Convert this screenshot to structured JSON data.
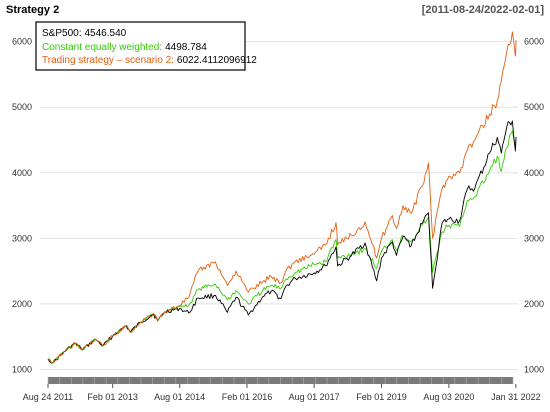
{
  "chart_data": {
    "type": "line",
    "title": "Strategy 2",
    "date_range": "[2011-08-24/2022-02-01]",
    "ylim": [
      900,
      6300
    ],
    "y_ticks": [
      1000,
      2000,
      3000,
      4000,
      5000,
      6000
    ],
    "y_tick_labels": [
      "1000",
      "2000",
      "3000",
      "4000",
      "5000",
      "6000"
    ],
    "x_ticks": [
      "2011-08-24",
      "2013-02-01",
      "2014-08-01",
      "2016-02-01",
      "2017-08-01",
      "2019-02-01",
      "2020-08-03",
      "2022-01-31"
    ],
    "x_tick_labels": [
      "Aug 24 2011",
      "Feb 01 2013",
      "Aug 01 2014",
      "Feb 01 2016",
      "Aug 01 2017",
      "Feb 01 2019",
      "Aug 03 2020",
      "Jan 31 2022"
    ],
    "x_range": [
      "2011-08-24",
      "2022-02-01"
    ],
    "grid": true,
    "legend_position": "top-left",
    "series": [
      {
        "name": "S&P500",
        "legend_label": "S&P500:",
        "last_value": "4546.540",
        "color": "#000000",
        "points": [
          [
            "2011-08-24",
            1160
          ],
          [
            "2011-10-03",
            1100
          ],
          [
            "2012-01-02",
            1270
          ],
          [
            "2012-04-02",
            1400
          ],
          [
            "2012-06-01",
            1300
          ],
          [
            "2012-09-14",
            1460
          ],
          [
            "2012-11-15",
            1360
          ],
          [
            "2013-02-01",
            1510
          ],
          [
            "2013-05-21",
            1670
          ],
          [
            "2013-06-24",
            1570
          ],
          [
            "2013-09-18",
            1720
          ],
          [
            "2013-12-31",
            1850
          ],
          [
            "2014-02-03",
            1740
          ],
          [
            "2014-04-01",
            1880
          ],
          [
            "2014-08-01",
            1930
          ],
          [
            "2014-10-15",
            1860
          ],
          [
            "2014-12-29",
            2090
          ],
          [
            "2015-05-20",
            2130
          ],
          [
            "2015-08-25",
            1870
          ],
          [
            "2015-11-03",
            2100
          ],
          [
            "2016-02-11",
            1830
          ],
          [
            "2016-06-08",
            2110
          ],
          [
            "2016-08-15",
            2190
          ],
          [
            "2016-11-04",
            2080
          ],
          [
            "2016-12-13",
            2270
          ],
          [
            "2017-03-01",
            2390
          ],
          [
            "2017-08-01",
            2475
          ],
          [
            "2017-11-01",
            2580
          ],
          [
            "2018-01-26",
            2870
          ],
          [
            "2018-02-08",
            2580
          ],
          [
            "2018-06-01",
            2740
          ],
          [
            "2018-09-20",
            2930
          ],
          [
            "2018-12-24",
            2350
          ],
          [
            "2019-02-01",
            2700
          ],
          [
            "2019-04-30",
            2945
          ],
          [
            "2019-06-03",
            2740
          ],
          [
            "2019-07-26",
            3025
          ],
          [
            "2019-10-02",
            2890
          ],
          [
            "2019-12-31",
            3230
          ],
          [
            "2020-02-19",
            3390
          ],
          [
            "2020-03-23",
            2240
          ],
          [
            "2020-06-08",
            3230
          ],
          [
            "2020-08-03",
            3295
          ],
          [
            "2020-10-30",
            3270
          ],
          [
            "2020-12-31",
            3750
          ],
          [
            "2021-03-04",
            3770
          ],
          [
            "2021-06-30",
            4300
          ],
          [
            "2021-09-02",
            4540
          ],
          [
            "2021-10-04",
            4300
          ],
          [
            "2021-11-18",
            4700
          ],
          [
            "2022-01-03",
            4790
          ],
          [
            "2022-01-27",
            4330
          ],
          [
            "2022-02-01",
            4546
          ]
        ]
      },
      {
        "name": "Constant equally weighted",
        "legend_label": "Constant equally weighted:",
        "last_value": "4498.784",
        "color": "#33cc00",
        "points": [
          [
            "2011-08-24",
            1160
          ],
          [
            "2011-10-03",
            1100
          ],
          [
            "2012-01-02",
            1270
          ],
          [
            "2012-04-02",
            1400
          ],
          [
            "2012-06-01",
            1300
          ],
          [
            "2012-09-14",
            1460
          ],
          [
            "2012-11-15",
            1360
          ],
          [
            "2013-02-01",
            1510
          ],
          [
            "2013-05-21",
            1670
          ],
          [
            "2013-06-24",
            1570
          ],
          [
            "2013-09-18",
            1720
          ],
          [
            "2013-12-31",
            1850
          ],
          [
            "2014-02-03",
            1740
          ],
          [
            "2014-04-01",
            1880
          ],
          [
            "2014-08-01",
            1960
          ],
          [
            "2014-10-15",
            1980
          ],
          [
            "2014-12-29",
            2220
          ],
          [
            "2015-05-20",
            2300
          ],
          [
            "2015-08-25",
            2060
          ],
          [
            "2015-11-03",
            2200
          ],
          [
            "2016-02-11",
            2000
          ],
          [
            "2016-06-08",
            2200
          ],
          [
            "2016-08-15",
            2280
          ],
          [
            "2016-11-04",
            2240
          ],
          [
            "2016-12-13",
            2380
          ],
          [
            "2017-03-01",
            2480
          ],
          [
            "2017-08-01",
            2600
          ],
          [
            "2017-11-01",
            2640
          ],
          [
            "2018-01-26",
            2980
          ],
          [
            "2018-02-08",
            2700
          ],
          [
            "2018-06-01",
            2760
          ],
          [
            "2018-09-20",
            2840
          ],
          [
            "2018-12-24",
            2540
          ],
          [
            "2019-02-01",
            2800
          ],
          [
            "2019-04-30",
            2980
          ],
          [
            "2019-06-03",
            2820
          ],
          [
            "2019-07-26",
            3050
          ],
          [
            "2019-10-02",
            2960
          ],
          [
            "2019-12-31",
            3200
          ],
          [
            "2020-02-19",
            3320
          ],
          [
            "2020-03-23",
            2480
          ],
          [
            "2020-06-08",
            3100
          ],
          [
            "2020-08-03",
            3200
          ],
          [
            "2020-10-30",
            3180
          ],
          [
            "2020-12-31",
            3580
          ],
          [
            "2021-03-04",
            3640
          ],
          [
            "2021-06-30",
            4020
          ],
          [
            "2021-09-02",
            4250
          ],
          [
            "2021-10-04",
            4020
          ],
          [
            "2021-11-18",
            4380
          ],
          [
            "2022-01-03",
            4640
          ],
          [
            "2022-01-27",
            4380
          ],
          [
            "2022-02-01",
            4498
          ]
        ]
      },
      {
        "name": "Trading strategy – scenario 2",
        "legend_label": "Trading strategy – scenario 2:",
        "last_value": "6022.4112096912",
        "color": "#e06010",
        "points": [
          [
            "2011-08-24",
            1160
          ],
          [
            "2011-10-03",
            1100
          ],
          [
            "2012-01-02",
            1270
          ],
          [
            "2012-04-02",
            1400
          ],
          [
            "2012-06-01",
            1300
          ],
          [
            "2012-09-14",
            1460
          ],
          [
            "2012-11-15",
            1360
          ],
          [
            "2013-02-01",
            1510
          ],
          [
            "2013-05-21",
            1670
          ],
          [
            "2013-06-24",
            1570
          ],
          [
            "2013-09-18",
            1720
          ],
          [
            "2013-12-31",
            1850
          ],
          [
            "2014-02-03",
            1740
          ],
          [
            "2014-04-01",
            1880
          ],
          [
            "2014-08-01",
            1980
          ],
          [
            "2014-10-15",
            2100
          ],
          [
            "2014-12-29",
            2500
          ],
          [
            "2015-05-20",
            2640
          ],
          [
            "2015-08-25",
            2280
          ],
          [
            "2015-11-03",
            2500
          ],
          [
            "2016-02-11",
            2180
          ],
          [
            "2016-06-08",
            2340
          ],
          [
            "2016-08-15",
            2420
          ],
          [
            "2016-11-04",
            2320
          ],
          [
            "2016-12-13",
            2500
          ],
          [
            "2017-03-01",
            2650
          ],
          [
            "2017-08-01",
            2760
          ],
          [
            "2017-11-01",
            2900
          ],
          [
            "2018-01-26",
            3240
          ],
          [
            "2018-02-08",
            2900
          ],
          [
            "2018-06-01",
            3050
          ],
          [
            "2018-09-20",
            3250
          ],
          [
            "2018-12-24",
            2700
          ],
          [
            "2019-02-01",
            3000
          ],
          [
            "2019-04-30",
            3350
          ],
          [
            "2019-06-03",
            3150
          ],
          [
            "2019-07-26",
            3500
          ],
          [
            "2019-10-02",
            3380
          ],
          [
            "2019-12-31",
            3800
          ],
          [
            "2020-02-19",
            4150
          ],
          [
            "2020-03-23",
            3000
          ],
          [
            "2020-06-08",
            3750
          ],
          [
            "2020-08-03",
            3950
          ],
          [
            "2020-10-30",
            4000
          ],
          [
            "2020-12-31",
            4350
          ],
          [
            "2021-03-04",
            4500
          ],
          [
            "2021-06-30",
            4900
          ],
          [
            "2021-09-02",
            5100
          ],
          [
            "2021-10-04",
            5400
          ],
          [
            "2021-11-18",
            5850
          ],
          [
            "2022-01-03",
            6150
          ],
          [
            "2022-01-27",
            5780
          ],
          [
            "2022-02-01",
            6022
          ]
        ]
      }
    ]
  }
}
